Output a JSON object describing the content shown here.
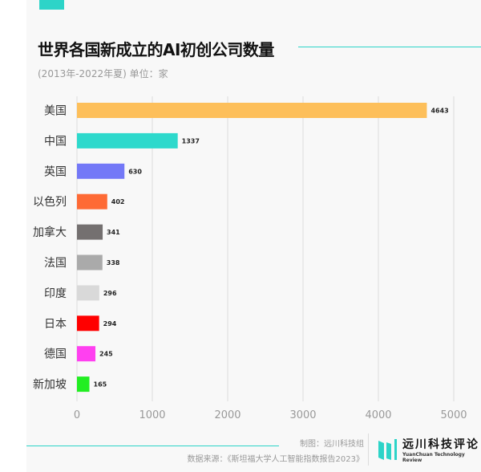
{
  "header": {
    "title": "世界各国新成立的AI初创公司数量",
    "subtitle": "(2013年-2022年夏) 单位：家"
  },
  "footer": {
    "credit": "制图：远川科技组",
    "source": "数据来源：《斯坦福大学人工智能指数报告2023》",
    "logo_name": "远川科技评论",
    "logo_en": "YuanChuan Technology Review"
  },
  "colors": {
    "accent": "#2dd4c8",
    "background": "#f8f8f8"
  },
  "chart_data": {
    "type": "bar",
    "orientation": "horizontal",
    "title": "世界各国新成立的AI初创公司数量",
    "subtitle": "(2013年-2022年夏) 单位：家",
    "categories": [
      "美国",
      "中国",
      "英国",
      "以色列",
      "加拿大",
      "法国",
      "印度",
      "日本",
      "德国",
      "新加坡"
    ],
    "values": [
      4643,
      1337,
      630,
      402,
      341,
      338,
      296,
      294,
      245,
      165
    ],
    "colors": [
      "#fdbf5a",
      "#2dd9cc",
      "#7378f7",
      "#fe6a35",
      "#747070",
      "#aaaaaa",
      "#d9d9d9",
      "#ff0000",
      "#ff40f0",
      "#22ee22"
    ],
    "xlim": [
      0,
      5000
    ],
    "xticks": [
      "0",
      "1000",
      "2000",
      "3000",
      "4000",
      "5000"
    ],
    "grid": true,
    "legend": "none"
  }
}
